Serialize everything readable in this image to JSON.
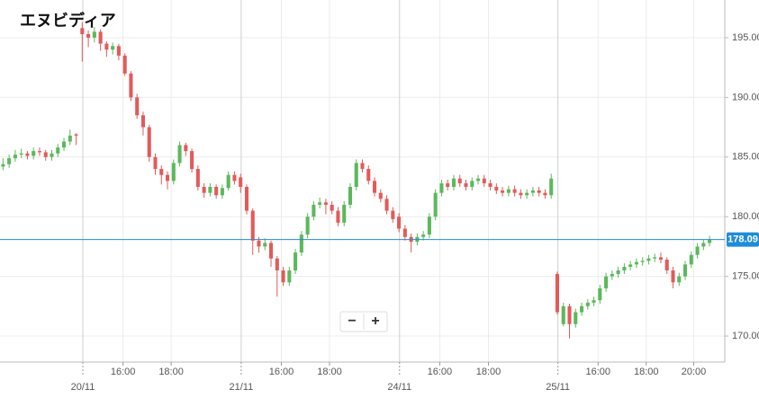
{
  "chart_data": {
    "type": "candlestick",
    "title": "エヌビディア",
    "open": [
      184.2,
      184.4,
      184.9,
      185.2,
      185.3,
      185.1,
      185.5,
      185.4,
      185.0,
      185.3,
      185.8,
      186.3,
      186.9,
      195.8,
      195.3,
      195.0,
      195.5,
      194.5,
      194.0,
      194.3,
      193.5,
      192.0,
      190.0,
      188.5,
      187.5,
      185.0,
      184.0,
      183.5,
      183.0,
      184.5,
      186.0,
      185.5,
      184.0,
      182.5,
      182.0,
      182.5,
      181.8,
      182.4,
      183.5,
      183.3,
      182.5,
      180.5,
      178.0,
      177.5,
      177.8,
      176.5,
      175.5,
      174.5,
      175.5,
      177.0,
      178.5,
      180.0,
      181.0,
      181.2,
      181.0,
      180.5,
      179.5,
      181.0,
      182.5,
      184.5,
      184.0,
      183.0,
      182.0,
      181.5,
      180.5,
      180.0,
      179.0,
      178.3,
      177.9,
      178.3,
      178.5,
      180.0,
      182.0,
      182.8,
      182.5,
      183.2,
      182.8,
      182.5,
      183.0,
      183.2,
      182.8,
      182.5,
      182.2,
      182.0,
      182.3,
      182.0,
      181.8,
      182.0,
      182.2,
      182.0,
      181.8,
      175.2,
      171.0,
      172.5,
      171.0,
      172.0,
      172.5,
      172.8,
      173.0,
      174.0,
      175.0,
      175.2,
      175.5,
      175.8,
      176.0,
      176.2,
      176.3,
      176.5,
      176.6,
      176.4,
      175.5,
      174.5,
      175.0,
      176.0,
      176.8,
      177.5,
      177.8
    ],
    "high": [
      184.9,
      185.2,
      185.6,
      185.7,
      185.5,
      185.8,
      185.8,
      185.6,
      185.6,
      186.1,
      186.6,
      187.3,
      187.0,
      196.3,
      195.6,
      195.9,
      195.7,
      194.7,
      194.6,
      194.5,
      193.7,
      192.2,
      190.3,
      188.8,
      187.7,
      185.3,
      184.3,
      183.8,
      184.8,
      186.3,
      186.2,
      185.7,
      184.3,
      182.8,
      182.8,
      182.7,
      182.7,
      183.8,
      183.8,
      183.6,
      182.7,
      180.7,
      178.3,
      178.2,
      178.0,
      176.7,
      175.8,
      175.8,
      177.3,
      178.8,
      180.3,
      181.3,
      181.6,
      181.5,
      181.3,
      180.8,
      181.3,
      182.8,
      184.8,
      184.8,
      184.3,
      183.3,
      182.3,
      181.8,
      180.8,
      180.3,
      179.3,
      178.6,
      178.6,
      178.8,
      180.3,
      182.3,
      183.1,
      183.1,
      183.5,
      183.5,
      183.1,
      183.3,
      183.5,
      183.5,
      183.1,
      182.8,
      182.5,
      182.6,
      182.6,
      182.3,
      182.3,
      182.5,
      182.5,
      182.3,
      183.6,
      175.4,
      172.8,
      172.7,
      172.3,
      172.8,
      173.1,
      173.3,
      174.3,
      175.3,
      175.5,
      175.8,
      176.1,
      176.3,
      176.5,
      176.6,
      176.8,
      176.9,
      177.0,
      176.6,
      175.8,
      175.3,
      176.3,
      177.1,
      177.8,
      178.1,
      178.4
    ],
    "low": [
      183.9,
      184.1,
      184.6,
      184.9,
      184.8,
      184.8,
      185.1,
      184.7,
      184.7,
      185.0,
      185.5,
      186.0,
      186.0,
      193.0,
      194.2,
      194.6,
      193.9,
      193.4,
      193.6,
      193.1,
      191.8,
      189.7,
      188.2,
      186.8,
      184.6,
      183.5,
      182.7,
      182.3,
      182.7,
      184.2,
      185.1,
      183.7,
      182.2,
      181.6,
      181.7,
      181.5,
      181.5,
      182.2,
      182.7,
      182.0,
      180.2,
      176.8,
      177.0,
      177.2,
      175.8,
      173.3,
      174.2,
      174.2,
      175.2,
      176.7,
      178.2,
      179.7,
      180.7,
      180.2,
      180.2,
      179.2,
      179.2,
      180.7,
      182.2,
      183.7,
      182.7,
      181.7,
      181.2,
      180.2,
      179.5,
      178.7,
      178.0,
      177.0,
      177.6,
      178.0,
      178.2,
      179.7,
      181.7,
      182.2,
      182.2,
      182.5,
      182.2,
      182.2,
      182.7,
      182.5,
      182.2,
      181.9,
      181.7,
      181.7,
      181.7,
      181.5,
      181.5,
      181.7,
      181.7,
      181.5,
      181.5,
      171.8,
      170.8,
      169.8,
      170.7,
      171.7,
      172.2,
      172.5,
      172.7,
      173.7,
      174.7,
      174.9,
      175.2,
      175.5,
      175.7,
      175.9,
      176.0,
      176.2,
      176.1,
      175.2,
      174.0,
      174.2,
      174.7,
      175.7,
      176.5,
      177.2,
      177.5
    ],
    "close": [
      184.4,
      184.9,
      185.2,
      185.3,
      185.1,
      185.5,
      185.4,
      185.0,
      185.3,
      185.8,
      186.3,
      186.8,
      186.8,
      195.3,
      195.0,
      195.5,
      194.5,
      194.0,
      194.3,
      193.5,
      192.0,
      190.0,
      188.5,
      187.5,
      185.0,
      184.0,
      183.5,
      183.0,
      184.5,
      186.0,
      185.5,
      184.0,
      182.5,
      182.0,
      182.5,
      181.8,
      182.4,
      183.5,
      183.0,
      182.5,
      180.5,
      178.0,
      177.5,
      177.8,
      176.5,
      175.5,
      174.5,
      175.5,
      177.0,
      178.5,
      180.0,
      181.0,
      181.2,
      181.0,
      180.5,
      179.5,
      181.0,
      182.5,
      184.5,
      184.0,
      183.0,
      182.0,
      181.5,
      180.5,
      179.8,
      179.0,
      178.3,
      177.9,
      178.3,
      178.5,
      180.0,
      182.0,
      182.8,
      182.5,
      183.2,
      182.8,
      182.5,
      183.0,
      183.2,
      182.8,
      182.5,
      182.2,
      182.0,
      182.3,
      182.0,
      181.8,
      182.0,
      182.2,
      182.0,
      181.8,
      183.2,
      172.0,
      172.5,
      171.0,
      172.0,
      172.5,
      172.8,
      173.0,
      174.0,
      175.0,
      175.2,
      175.5,
      175.8,
      176.0,
      176.2,
      176.3,
      176.5,
      176.6,
      176.4,
      175.5,
      174.5,
      175.0,
      176.0,
      176.8,
      177.5,
      177.8,
      178.09
    ],
    "up_color": "#5cb85c",
    "down_color": "#e35a5a",
    "last_price": 178.09,
    "last_price_color": "#1f8dd6",
    "xlim": [
      -0.5,
      118.5
    ],
    "xticks": [
      {
        "value": 13.1,
        "label": "20/11"
      },
      {
        "value": 19.7,
        "label": "16:00"
      },
      {
        "value": 27.6,
        "label": "18:00"
      },
      {
        "value": 39.1,
        "label": "21/11"
      },
      {
        "value": 45.7,
        "label": "16:00"
      },
      {
        "value": 53.6,
        "label": "18:00"
      },
      {
        "value": 65.1,
        "label": "24/11"
      },
      {
        "value": 71.7,
        "label": "16:00"
      },
      {
        "value": 79.7,
        "label": "18:00"
      },
      {
        "value": 91.1,
        "label": "25/11"
      },
      {
        "value": 97.7,
        "label": "16:00"
      },
      {
        "value": 105.6,
        "label": "18:00"
      },
      {
        "value": 113.4,
        "label": "20:00"
      }
    ],
    "ylim": [
      167.82,
      198.16
    ],
    "yticks": [
      {
        "value": 170,
        "label": "170.00"
      },
      {
        "value": 175,
        "label": "175.00"
      },
      {
        "value": 180,
        "label": "180.00"
      },
      {
        "value": 185,
        "label": "185.00"
      },
      {
        "value": 190,
        "label": "190.00"
      },
      {
        "value": 195,
        "label": "195.00"
      }
    ],
    "grid": true
  },
  "controls": {
    "zoom_out": "−",
    "zoom_in": "+"
  }
}
